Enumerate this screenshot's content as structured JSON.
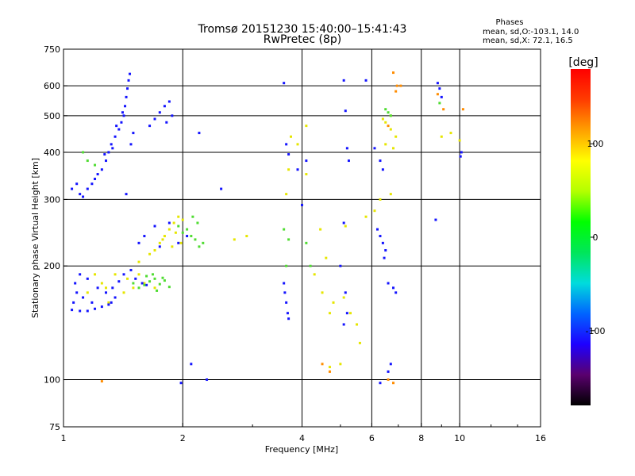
{
  "chart_data": {
    "type": "scatter",
    "title": "Tromsø 20151230 15:40:00–15:41:43",
    "subtitle": "RwPretec (8p)",
    "stats": {
      "heading": "Phases",
      "line1": "mean, sd,O:-103.1, 14.0",
      "line2": "mean, sd,X:  72.1, 16.5"
    },
    "xlabel": "Frequency [MHz]",
    "ylabel": "Stationary phase Virtual Height [km]",
    "x_scale": "log",
    "y_scale": "log",
    "xlim": [
      1,
      16
    ],
    "ylim": [
      75,
      750
    ],
    "x_ticks": [
      1,
      2,
      4,
      6,
      8,
      10,
      16
    ],
    "x_tick_labels": [
      "1",
      "2",
      "4",
      "6",
      "8",
      "10",
      "16"
    ],
    "y_ticks": [
      75,
      100,
      200,
      300,
      400,
      500,
      600,
      750
    ],
    "y_tick_labels": [
      "75",
      "100",
      "200",
      "300",
      "400",
      "500",
      "600",
      "750"
    ],
    "grid_x": [
      2,
      4,
      6,
      8,
      10
    ],
    "grid_y": [
      100,
      200,
      300,
      400,
      500,
      600
    ],
    "grid": true,
    "colorbar": {
      "label": "[deg]",
      "range": [
        -180,
        180
      ],
      "ticks": [
        100,
        0,
        -100
      ],
      "tick_labels": [
        "100",
        "0",
        "-100"
      ],
      "stops": [
        "#000000",
        "#5a006e",
        "#1e00ff",
        "#0064ff",
        "#00dcdc",
        "#00e65a",
        "#00ff00",
        "#b4ff00",
        "#ffff00",
        "#ffa000",
        "#ff3c00",
        "#ff0000"
      ]
    },
    "series": [
      {
        "values": [
          [
            1.15,
            170
          ],
          [
            1.2,
            190
          ],
          [
            1.25,
            180
          ],
          [
            1.28,
            175
          ],
          [
            1.3,
            160
          ],
          [
            1.35,
            190
          ],
          [
            1.42,
            170
          ],
          [
            1.45,
            185
          ],
          [
            1.5,
            175
          ],
          [
            1.55,
            190
          ],
          [
            1.6,
            180
          ],
          [
            1.7,
            175
          ],
          [
            1.55,
            205
          ],
          [
            1.65,
            215
          ],
          [
            1.7,
            220
          ],
          [
            1.75,
            230
          ],
          [
            1.8,
            240
          ],
          [
            1.85,
            250
          ],
          [
            1.9,
            260
          ],
          [
            1.95,
            270
          ],
          [
            2.0,
            265
          ],
          [
            1.78,
            235
          ],
          [
            1.88,
            225
          ],
          [
            1.92,
            245
          ],
          [
            1.98,
            230
          ],
          [
            4.3,
            190
          ],
          [
            4.5,
            170
          ],
          [
            4.8,
            160
          ],
          [
            4.7,
            150
          ],
          [
            5.1,
            165
          ],
          [
            5.3,
            150
          ],
          [
            5.5,
            140
          ],
          [
            5.6,
            125
          ],
          [
            3.65,
            310
          ],
          [
            3.7,
            360
          ],
          [
            4.1,
            350
          ],
          [
            4.45,
            250
          ],
          [
            4.6,
            210
          ],
          [
            5.15,
            255
          ],
          [
            5.8,
            270
          ],
          [
            6.1,
            280
          ],
          [
            6.3,
            300
          ],
          [
            6.7,
            310
          ],
          [
            6.5,
            480
          ],
          [
            6.7,
            460
          ],
          [
            6.9,
            440
          ],
          [
            6.5,
            420
          ],
          [
            6.8,
            410
          ],
          [
            9.0,
            440
          ],
          [
            9.5,
            450
          ],
          [
            10.0,
            430
          ],
          [
            3.9,
            420
          ],
          [
            3.75,
            440
          ],
          [
            4.1,
            470
          ],
          [
            6.4,
            490
          ],
          [
            6.7,
            500
          ],
          [
            2.7,
            235
          ],
          [
            2.9,
            240
          ],
          [
            5.0,
            110
          ],
          [
            4.7,
            108
          ]
        ]
      },
      {
        "values": [
          [
            1.05,
            153
          ],
          [
            1.1,
            152
          ],
          [
            1.15,
            152
          ],
          [
            1.2,
            154
          ],
          [
            1.25,
            156
          ],
          [
            1.3,
            158
          ],
          [
            1.32,
            160
          ],
          [
            1.35,
            165
          ],
          [
            1.06,
            160
          ],
          [
            1.08,
            170
          ],
          [
            1.12,
            165
          ],
          [
            1.18,
            160
          ],
          [
            1.07,
            180
          ],
          [
            1.1,
            190
          ],
          [
            1.15,
            185
          ],
          [
            1.22,
            175
          ],
          [
            1.28,
            170
          ],
          [
            1.33,
            175
          ],
          [
            1.38,
            182
          ],
          [
            1.42,
            190
          ],
          [
            1.48,
            195
          ],
          [
            1.52,
            185
          ],
          [
            1.58,
            180
          ],
          [
            1.62,
            178
          ],
          [
            1.05,
            320
          ],
          [
            1.08,
            330
          ],
          [
            1.1,
            310
          ],
          [
            1.12,
            305
          ],
          [
            1.15,
            320
          ],
          [
            1.18,
            330
          ],
          [
            1.2,
            340
          ],
          [
            1.22,
            350
          ],
          [
            1.25,
            360
          ],
          [
            1.28,
            380
          ],
          [
            1.3,
            400
          ],
          [
            1.32,
            420
          ],
          [
            1.35,
            440
          ],
          [
            1.38,
            460
          ],
          [
            1.4,
            480
          ],
          [
            1.42,
            500
          ],
          [
            1.43,
            530
          ],
          [
            1.44,
            560
          ],
          [
            1.45,
            590
          ],
          [
            1.46,
            620
          ],
          [
            1.47,
            645
          ],
          [
            1.44,
            310
          ],
          [
            1.48,
            420
          ],
          [
            1.5,
            450
          ],
          [
            1.27,
            395
          ],
          [
            1.33,
            410
          ],
          [
            1.36,
            470
          ],
          [
            1.41,
            510
          ],
          [
            1.65,
            470
          ],
          [
            1.7,
            490
          ],
          [
            1.75,
            510
          ],
          [
            1.8,
            530
          ],
          [
            1.85,
            545
          ],
          [
            1.88,
            500
          ],
          [
            1.82,
            480
          ],
          [
            1.55,
            230
          ],
          [
            1.6,
            240
          ],
          [
            1.7,
            255
          ],
          [
            1.75,
            225
          ],
          [
            1.85,
            260
          ],
          [
            1.95,
            230
          ],
          [
            2.05,
            240
          ],
          [
            3.6,
            610
          ],
          [
            3.65,
            420
          ],
          [
            3.7,
            395
          ],
          [
            4.0,
            290
          ],
          [
            4.1,
            380
          ],
          [
            3.9,
            360
          ],
          [
            5.1,
            620
          ],
          [
            5.15,
            515
          ],
          [
            5.2,
            410
          ],
          [
            5.25,
            380
          ],
          [
            5.1,
            260
          ],
          [
            5.0,
            200
          ],
          [
            5.15,
            170
          ],
          [
            5.2,
            150
          ],
          [
            5.1,
            140
          ],
          [
            3.6,
            180
          ],
          [
            3.65,
            160
          ],
          [
            3.7,
            145
          ],
          [
            3.62,
            170
          ],
          [
            3.68,
            150
          ],
          [
            5.8,
            620
          ],
          [
            6.1,
            410
          ],
          [
            6.3,
            380
          ],
          [
            6.4,
            360
          ],
          [
            6.2,
            250
          ],
          [
            6.3,
            240
          ],
          [
            6.4,
            230
          ],
          [
            6.5,
            220
          ],
          [
            6.45,
            210
          ],
          [
            6.6,
            180
          ],
          [
            6.8,
            175
          ],
          [
            6.9,
            170
          ],
          [
            6.6,
            105
          ],
          [
            6.7,
            110
          ],
          [
            6.3,
            98
          ],
          [
            8.8,
            610
          ],
          [
            8.9,
            590
          ],
          [
            9.0,
            560
          ],
          [
            8.7,
            265
          ],
          [
            10.1,
            400
          ],
          [
            10.05,
            390
          ],
          [
            2.1,
            110
          ],
          [
            2.3,
            100
          ],
          [
            2.2,
            450
          ],
          [
            2.5,
            320
          ],
          [
            1.98,
            98
          ]
        ]
      },
      {
        "values": [
          [
            2.05,
            250
          ],
          [
            2.1,
            240
          ],
          [
            2.15,
            235
          ],
          [
            2.2,
            225
          ],
          [
            2.25,
            230
          ],
          [
            1.95,
            255
          ],
          [
            2.0,
            245
          ],
          [
            2.12,
            270
          ],
          [
            2.18,
            260
          ],
          [
            1.5,
            180
          ],
          [
            1.55,
            175
          ],
          [
            1.6,
            178
          ],
          [
            1.65,
            182
          ],
          [
            1.7,
            185
          ],
          [
            1.75,
            179
          ],
          [
            1.8,
            183
          ],
          [
            1.85,
            176
          ],
          [
            1.72,
            172
          ],
          [
            1.78,
            186
          ],
          [
            1.68,
            190
          ],
          [
            1.62,
            188
          ],
          [
            1.12,
            400
          ],
          [
            1.15,
            380
          ],
          [
            1.2,
            370
          ],
          [
            3.6,
            250
          ],
          [
            3.7,
            235
          ],
          [
            3.65,
            200
          ],
          [
            4.1,
            230
          ],
          [
            4.2,
            200
          ],
          [
            6.5,
            520
          ],
          [
            6.6,
            510
          ],
          [
            6.7,
            500
          ],
          [
            8.9,
            540
          ]
        ]
      },
      {
        "values": [
          [
            6.9,
            580
          ],
          [
            7.1,
            600
          ],
          [
            8.8,
            570
          ],
          [
            9.1,
            520
          ],
          [
            10.2,
            520
          ],
          [
            6.6,
            470
          ],
          [
            6.8,
            650
          ],
          [
            6.95,
            600
          ],
          [
            4.5,
            110
          ],
          [
            4.7,
            105
          ],
          [
            6.6,
            100
          ],
          [
            6.8,
            98
          ],
          [
            1.25,
            99
          ]
        ]
      }
    ]
  }
}
